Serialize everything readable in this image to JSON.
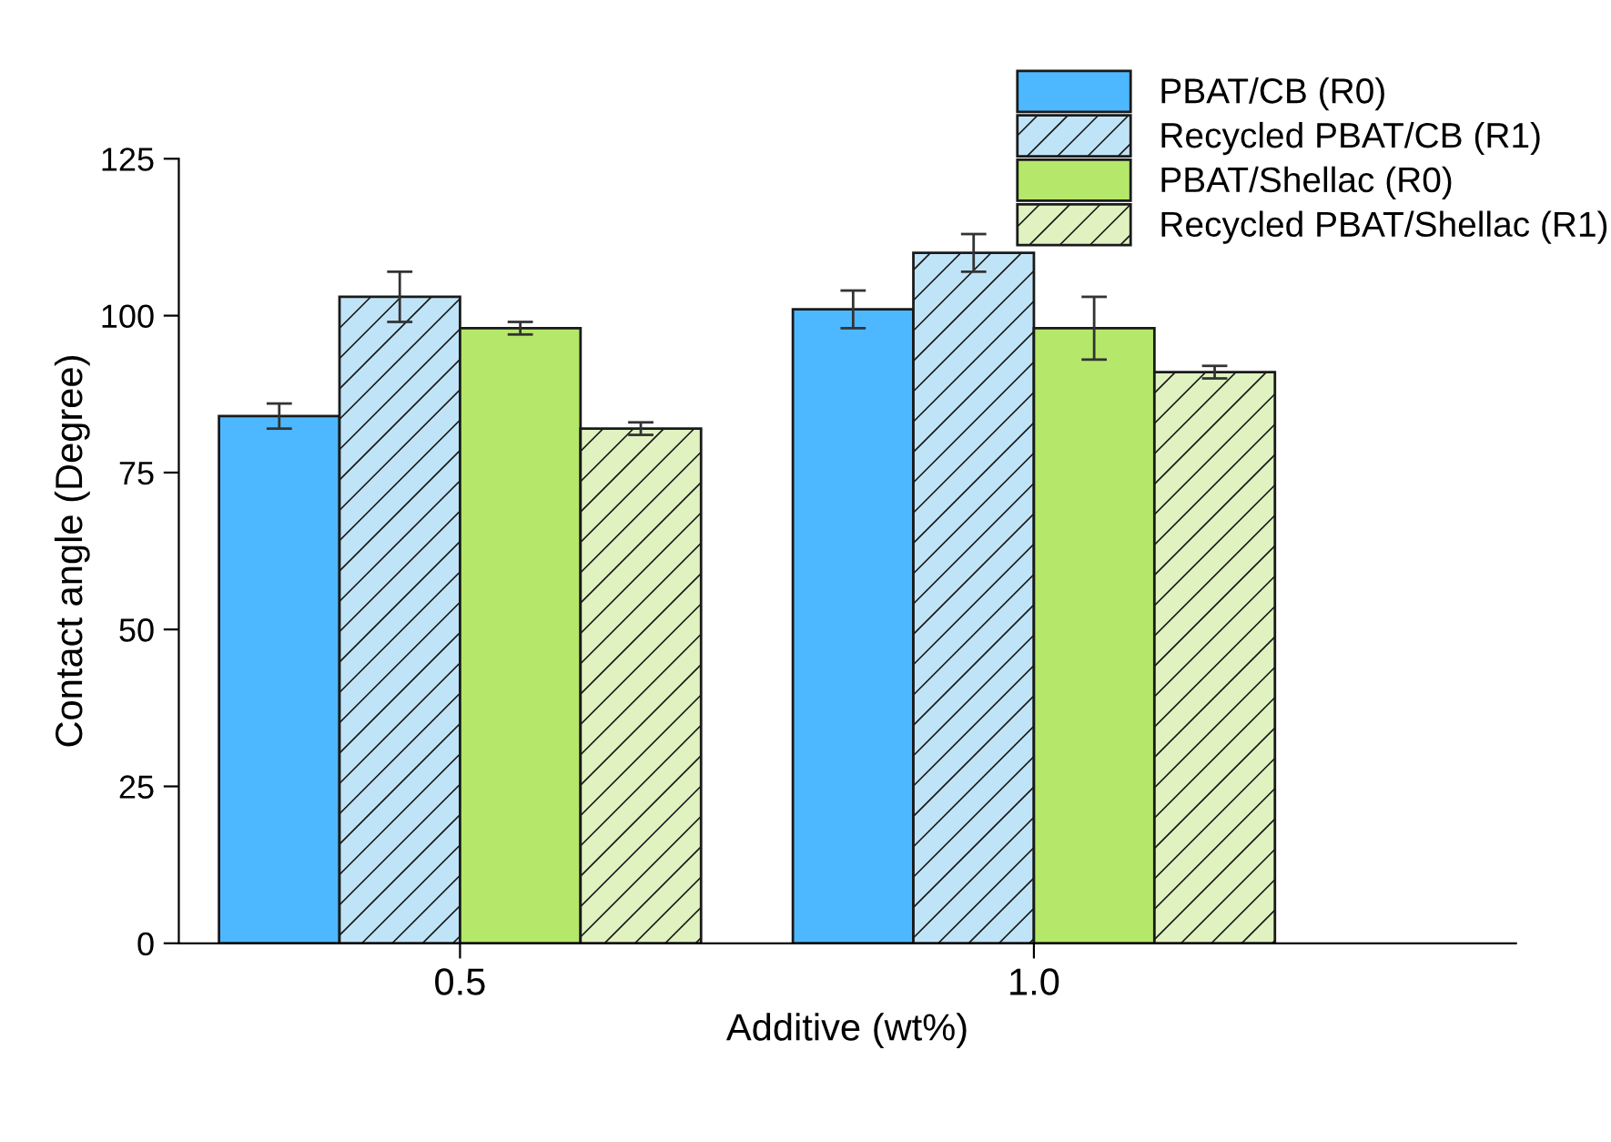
{
  "chart_data": {
    "type": "bar",
    "xlabel": "Additive (wt%)",
    "ylabel": "Contact angle (Degree)",
    "categories": [
      "0.5",
      "1.0"
    ],
    "series": [
      {
        "name": "PBAT/CB (R0)",
        "color": "#4db8ff",
        "values": [
          84,
          101
        ],
        "errors": [
          2,
          3
        ]
      },
      {
        "name": "Recycled PBAT/CB (R1)",
        "color": "#c0e4f7",
        "values": [
          103,
          110
        ],
        "errors": [
          4,
          3
        ]
      },
      {
        "name": "PBAT/Shellac (R0)",
        "color": "#b5e86a",
        "values": [
          98,
          98
        ],
        "errors": [
          1,
          5
        ]
      },
      {
        "name": "Recycled PBAT/Shellac (R1)",
        "color": "#dff2c0",
        "values": [
          82,
          91
        ],
        "errors": [
          1,
          1
        ]
      }
    ],
    "ylim": [
      0,
      125
    ],
    "yticks": [
      0,
      25,
      50,
      75,
      100,
      125
    ],
    "grid": false,
    "legend": "top right"
  }
}
